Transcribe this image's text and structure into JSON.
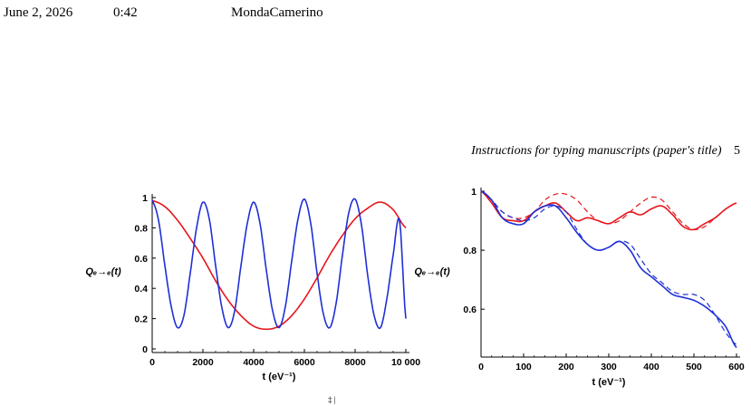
{
  "header": {
    "date": "June 2, 2026",
    "time": "0:42",
    "filename": "MondaCamerino"
  },
  "running_head": {
    "title": "Instructions for typing manuscripts (paper's title)",
    "page_number": "5"
  },
  "footer_mark": "‡ |",
  "colors": {
    "red": "#e8141a",
    "blue": "#1f2fd6",
    "axis": "#000000"
  },
  "chart_data": [
    {
      "type": "line",
      "xlabel": "t (eV⁻¹)",
      "ylabel": "Qₑ→ₑ(t)",
      "xlim": [
        0,
        10000
      ],
      "ylim": [
        0,
        1
      ],
      "xticks": [
        0,
        2000,
        4000,
        6000,
        8000,
        10000
      ],
      "xtick_labels": [
        "0",
        "2000",
        "4000",
        "6000",
        "8000",
        "10 000"
      ],
      "yticks": [
        0,
        0.2,
        0.4,
        0.6,
        0.8,
        1
      ],
      "ytick_labels": [
        "0",
        "0.2",
        "0.4",
        "0.6",
        "0.8",
        "1"
      ],
      "series": [
        {
          "color": "red",
          "dash": false,
          "x": [
            0,
            500,
            1000,
            1500,
            2000,
            2500,
            3000,
            3500,
            4000,
            4500,
            5000,
            5500,
            6000,
            6500,
            7000,
            7500,
            8000,
            8500,
            9000,
            9500,
            10000
          ],
          "y": [
            0.98,
            0.94,
            0.85,
            0.73,
            0.6,
            0.45,
            0.32,
            0.22,
            0.15,
            0.13,
            0.15,
            0.22,
            0.33,
            0.47,
            0.62,
            0.75,
            0.86,
            0.93,
            0.97,
            0.92,
            0.8
          ]
        },
        {
          "color": "blue",
          "dash": false,
          "x": [
            0,
            250,
            500,
            750,
            1000,
            1250,
            1500,
            1750,
            2000,
            2250,
            2500,
            2750,
            3000,
            3250,
            3500,
            3750,
            4000,
            4250,
            4500,
            4750,
            5000,
            5250,
            5500,
            5750,
            6000,
            6250,
            6500,
            6750,
            7000,
            7250,
            7500,
            7750,
            8000,
            8250,
            8500,
            8750,
            9000,
            9250,
            9500,
            9750,
            10000
          ],
          "y": [
            0.98,
            0.85,
            0.55,
            0.28,
            0.14,
            0.22,
            0.5,
            0.8,
            0.97,
            0.86,
            0.55,
            0.27,
            0.14,
            0.25,
            0.55,
            0.83,
            0.97,
            0.83,
            0.52,
            0.25,
            0.14,
            0.28,
            0.58,
            0.86,
            0.99,
            0.83,
            0.5,
            0.23,
            0.14,
            0.3,
            0.62,
            0.9,
            0.99,
            0.82,
            0.48,
            0.22,
            0.14,
            0.33,
            0.62,
            0.85,
            0.2
          ]
        }
      ]
    },
    {
      "type": "line",
      "xlabel": "t (eV⁻¹)",
      "ylabel": "Qₑ→ₑ(t)",
      "xlim": [
        0,
        600
      ],
      "ylim": [
        0.45,
        1
      ],
      "xticks": [
        0,
        100,
        200,
        300,
        400,
        500,
        600
      ],
      "xtick_labels": [
        "0",
        "100",
        "200",
        "300",
        "400",
        "500",
        "600"
      ],
      "yticks": [
        0.6,
        0.8,
        1
      ],
      "ytick_labels": [
        "0.6",
        "0.8",
        "1"
      ],
      "series": [
        {
          "color": "red",
          "dash": false,
          "x": [
            0,
            25,
            50,
            75,
            100,
            125,
            150,
            175,
            200,
            225,
            250,
            275,
            300,
            325,
            350,
            375,
            400,
            425,
            450,
            475,
            500,
            525,
            550,
            575,
            600
          ],
          "y": [
            1.0,
            0.96,
            0.91,
            0.9,
            0.9,
            0.93,
            0.95,
            0.96,
            0.93,
            0.9,
            0.91,
            0.9,
            0.89,
            0.91,
            0.93,
            0.92,
            0.94,
            0.95,
            0.92,
            0.88,
            0.87,
            0.89,
            0.91,
            0.94,
            0.96
          ]
        },
        {
          "color": "red",
          "dash": true,
          "x": [
            0,
            25,
            50,
            75,
            100,
            125,
            150,
            175,
            200,
            225,
            250,
            275,
            300,
            325,
            350,
            375,
            400,
            425,
            450,
            475,
            500,
            525,
            550,
            575,
            600
          ],
          "y": [
            1.0,
            0.97,
            0.93,
            0.91,
            0.91,
            0.93,
            0.97,
            0.99,
            0.99,
            0.97,
            0.93,
            0.9,
            0.89,
            0.9,
            0.93,
            0.96,
            0.98,
            0.97,
            0.93,
            0.89,
            0.87,
            0.88,
            0.91,
            0.94,
            0.96
          ]
        },
        {
          "color": "blue",
          "dash": false,
          "x": [
            0,
            25,
            50,
            75,
            100,
            125,
            150,
            175,
            200,
            225,
            250,
            275,
            300,
            325,
            350,
            375,
            400,
            425,
            450,
            475,
            500,
            525,
            550,
            575,
            600
          ],
          "y": [
            1.0,
            0.97,
            0.91,
            0.89,
            0.89,
            0.93,
            0.95,
            0.95,
            0.91,
            0.86,
            0.82,
            0.8,
            0.81,
            0.83,
            0.8,
            0.74,
            0.71,
            0.68,
            0.65,
            0.64,
            0.63,
            0.61,
            0.58,
            0.54,
            0.47
          ]
        },
        {
          "color": "blue",
          "dash": true,
          "x": [
            0,
            25,
            50,
            75,
            100,
            125,
            150,
            175,
            200,
            225,
            250,
            275,
            300,
            325,
            350,
            375,
            400,
            425,
            450,
            475,
            500,
            525,
            550,
            575,
            600
          ],
          "y": [
            1.0,
            0.97,
            0.93,
            0.91,
            0.9,
            0.91,
            0.94,
            0.95,
            0.93,
            0.87,
            0.82,
            0.8,
            0.81,
            0.83,
            0.82,
            0.77,
            0.72,
            0.69,
            0.66,
            0.65,
            0.65,
            0.63,
            0.58,
            0.52,
            0.48
          ]
        }
      ]
    }
  ]
}
